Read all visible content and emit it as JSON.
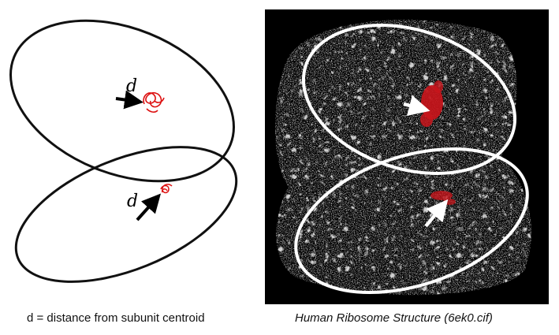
{
  "left_panel": {
    "label_top": "d",
    "label_bottom": "d",
    "caption": "d = distance from subunit centroid"
  },
  "right_panel": {
    "caption": "Human Ribosome Structure (6ek0.cif)",
    "background_color": "#000000",
    "highlight_color": "#c8151b",
    "ellipse_color": "#ffffff"
  }
}
